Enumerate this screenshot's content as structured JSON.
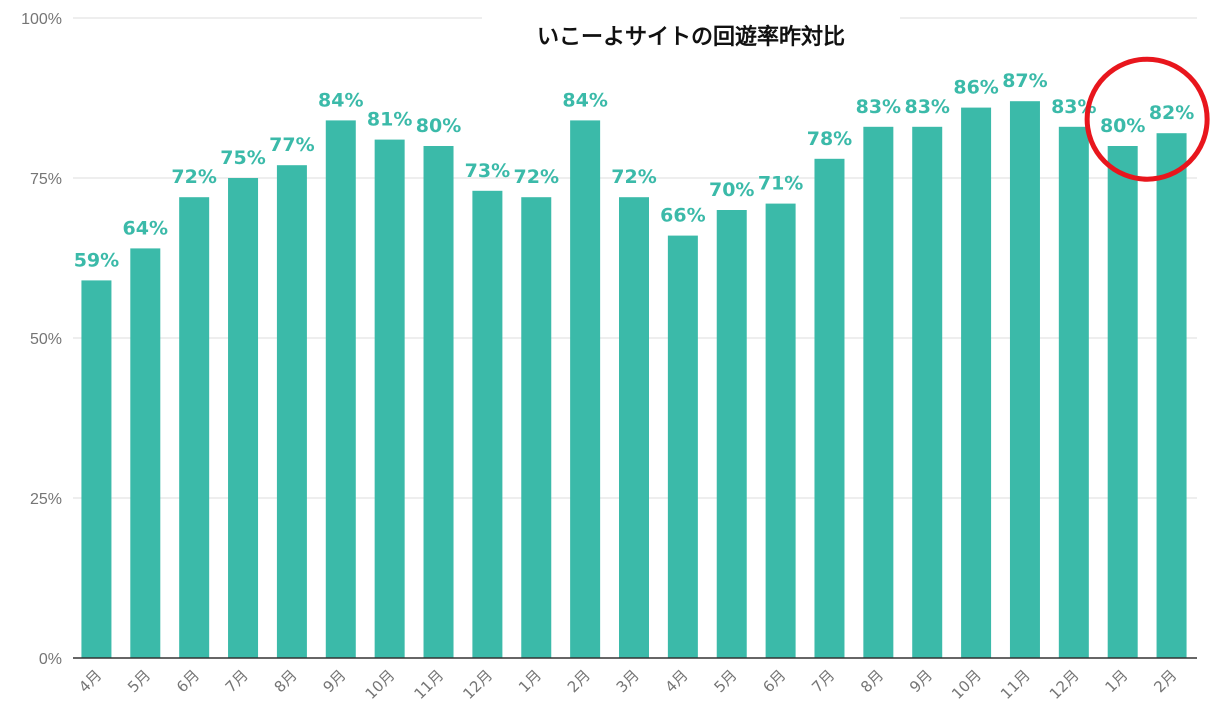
{
  "chart_data": {
    "type": "bar",
    "title": "いこーよサイトの回遊率昨対比",
    "categories": [
      "4月",
      "5月",
      "6月",
      "7月",
      "8月",
      "9月",
      "10月",
      "11月",
      "12月",
      "1月",
      "2月",
      "3月",
      "4月",
      "5月",
      "6月",
      "7月",
      "8月",
      "9月",
      "10月",
      "11月",
      "12月",
      "1月",
      "2月"
    ],
    "values": [
      59,
      64,
      72,
      75,
      77,
      84,
      81,
      80,
      73,
      72,
      84,
      72,
      66,
      70,
      71,
      78,
      83,
      83,
      86,
      87,
      83,
      80,
      82
    ],
    "value_labels": [
      "59%",
      "64%",
      "72%",
      "75%",
      "77%",
      "84%",
      "81%",
      "80%",
      "73%",
      "72%",
      "84%",
      "72%",
      "66%",
      "70%",
      "71%",
      "78%",
      "83%",
      "83%",
      "86%",
      "87%",
      "83%",
      "80%",
      "82%"
    ],
    "ylim": [
      0,
      100
    ],
    "yticks": [
      0,
      25,
      50,
      75,
      100
    ],
    "ytick_labels": [
      "0%",
      "25%",
      "50%",
      "75%",
      "100%"
    ],
    "grid": true,
    "legend": "none",
    "bar_color": "#3bbaa9",
    "label_color": "#3bbaa9",
    "highlight": {
      "indices": [
        21,
        22
      ],
      "shape": "circle",
      "color": "#e8161d"
    }
  }
}
